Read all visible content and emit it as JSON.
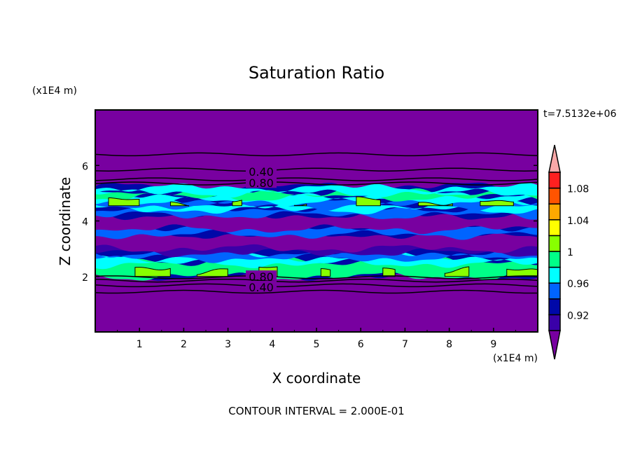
{
  "chart_data": {
    "type": "heatmap",
    "subtype": "filled-contour",
    "title": "Saturation Ratio",
    "xlabel": "X coordinate",
    "ylabel": "Z coordinate",
    "x_unit": "(x1E4 m)",
    "y_unit": "(x1E4 m)",
    "time_label": "t=7.5132e+06",
    "footer": "CONTOUR INTERVAL = 2.000E-01",
    "xlim": [
      0,
      10
    ],
    "ylim": [
      0,
      8
    ],
    "x_ticks": [
      1,
      2,
      3,
      4,
      5,
      6,
      7,
      8,
      9
    ],
    "x_tick_labels": [
      "1",
      "2",
      "3",
      "4",
      "5",
      "6",
      "7",
      "8",
      "9"
    ],
    "y_ticks": [
      2,
      4,
      6
    ],
    "y_tick_labels": [
      "2",
      "4",
      "6"
    ],
    "colorbar": {
      "levels": [
        0.9,
        0.92,
        0.94,
        0.96,
        0.98,
        1.0,
        1.02,
        1.04,
        1.06,
        1.08,
        1.1
      ],
      "colors": [
        "#3a00a8",
        "#0008a8",
        "#0064ff",
        "#00ffff",
        "#00ff88",
        "#88ff00",
        "#ffff00",
        "#ffa800",
        "#ff5400",
        "#ff2020"
      ],
      "under_color": "#7800a0",
      "over_color": "#f8a8a8",
      "labels": [
        {
          "value": 1.08,
          "text": "1.08"
        },
        {
          "value": 1.04,
          "text": "1.04"
        },
        {
          "value": 1.0,
          "text": "1"
        },
        {
          "value": 0.96,
          "text": "0.96"
        },
        {
          "value": 0.92,
          "text": "0.92"
        }
      ]
    },
    "bands": [
      {
        "z0": 2.0,
        "z1": 5.25,
        "level": 1
      },
      {
        "z0": 2.0,
        "z1": 2.55,
        "level": 4
      },
      {
        "z0": 2.45,
        "z1": 2.7,
        "level": 3
      },
      {
        "z0": 2.65,
        "z1": 2.85,
        "level": 2
      },
      {
        "z0": 2.85,
        "z1": 3.3,
        "level": 0
      },
      {
        "z0": 3.0,
        "z1": 3.5,
        "level": -1
      },
      {
        "z0": 3.5,
        "z1": 3.8,
        "level": 2
      },
      {
        "z0": 3.7,
        "z1": 4.2,
        "level": -1
      },
      {
        "z0": 4.2,
        "z1": 4.45,
        "level": 2
      },
      {
        "z0": 4.4,
        "z1": 4.6,
        "level": 3
      },
      {
        "z0": 4.55,
        "z1": 4.75,
        "level": 2
      },
      {
        "z0": 4.7,
        "z1": 4.95,
        "level": 3
      },
      {
        "z0": 4.85,
        "z1": 5.05,
        "level": 4
      },
      {
        "z0": 5.0,
        "z1": 5.2,
        "level": 3
      },
      {
        "z0": 2.0,
        "z1": 2.25,
        "level": 5,
        "patchy": true
      },
      {
        "z0": 4.55,
        "z1": 4.7,
        "level": 5,
        "patchy": true
      }
    ],
    "contour_lines": [
      {
        "level": 0.2,
        "z": 6.4
      },
      {
        "level": 0.4,
        "z": 5.85,
        "label": "0.40"
      },
      {
        "level": 0.6,
        "z": 5.5
      },
      {
        "level": 0.8,
        "z": 5.35,
        "label": "0.80"
      },
      {
        "level": 0.8,
        "z": 1.97,
        "label": "0.80"
      },
      {
        "level": 0.6,
        "z": 1.85
      },
      {
        "level": 0.4,
        "z": 1.68,
        "label": "0.40"
      },
      {
        "level": 0.2,
        "z": 1.45
      }
    ]
  }
}
